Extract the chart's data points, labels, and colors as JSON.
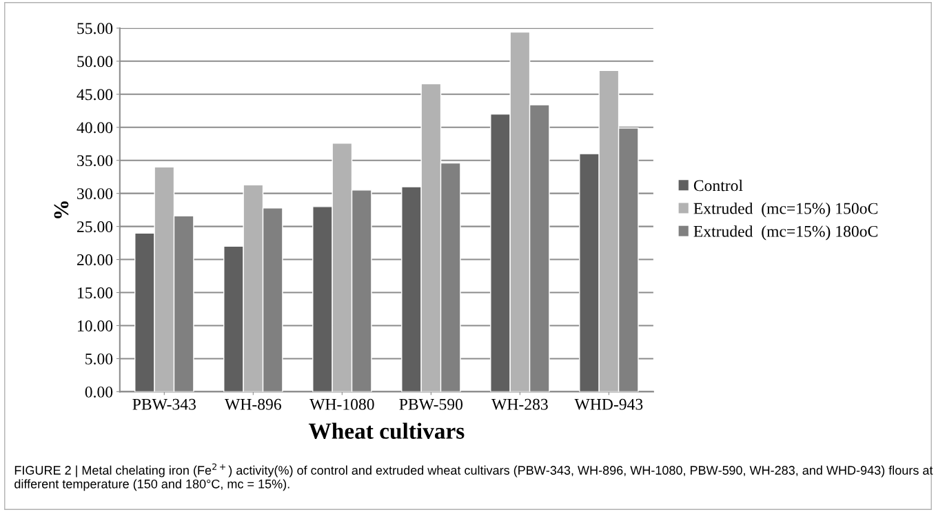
{
  "chart_data": {
    "type": "bar",
    "xlabel": "Wheat cultivars",
    "ylabel": "%",
    "categories": [
      "PBW-343",
      "WH-896",
      "WH-1080",
      "PBW-590",
      "WH-283",
      "WHD-943"
    ],
    "series": [
      {
        "name": "Control",
        "color": "#5f5f5f",
        "values": [
          24,
          22,
          28,
          31,
          42,
          36
        ]
      },
      {
        "name": "Extruded  (mc=15%) 150oC",
        "color": "#b2b2b2",
        "values": [
          34,
          31.3,
          37.6,
          46.6,
          54.4,
          48.6
        ]
      },
      {
        "name": "Extruded  (mc=15%) 180oC",
        "color": "#808080",
        "values": [
          26.6,
          27.8,
          30.5,
          34.6,
          43.4,
          39.9
        ]
      }
    ],
    "ylim": [
      0,
      55
    ],
    "yticks": [
      {
        "value": 0,
        "label": "0.00"
      },
      {
        "value": 5,
        "label": "5.00"
      },
      {
        "value": 10,
        "label": "10.00"
      },
      {
        "value": 15,
        "label": "15.00"
      },
      {
        "value": 20,
        "label": "20.00"
      },
      {
        "value": 25,
        "label": "25.00"
      },
      {
        "value": 30,
        "label": "30.00"
      },
      {
        "value": 35,
        "label": "35.00"
      },
      {
        "value": 40,
        "label": "40.00"
      },
      {
        "value": 45,
        "label": "45.00"
      },
      {
        "value": 50,
        "label": "50.00"
      },
      {
        "value": 55,
        "label": "55.00"
      }
    ],
    "grid": "y",
    "legend": "right",
    "annotations": [
      "FIGURE 2 | Metal chelating iron (Fe$^{2+}$) activity(%) of control and extruded wheat cultivars (PBW-343, WH-896, WH-1080, PBW-590, WH-283, and WHD-943) flours at different temperature (150 and 180°C, mc = 15%)."
    ]
  }
}
